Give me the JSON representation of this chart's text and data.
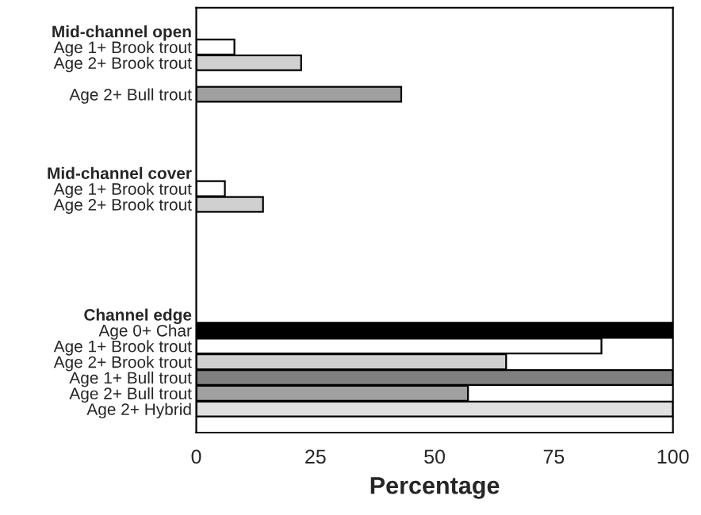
{
  "chart_data": {
    "type": "bar",
    "orientation": "horizontal",
    "xlabel": "Percentage",
    "categories": [
      null,
      "Mid-channel open",
      "Age 1+ Brook trout",
      "Age 2+ Brook trout",
      null,
      "Age 2+ Bull trout",
      null,
      null,
      null,
      null,
      "Mid-channel cover",
      "Age 1+ Brook trout",
      "Age 2+ Brook trout",
      null,
      null,
      null,
      null,
      null,
      null,
      "Channel edge",
      "Age 0+ Char",
      "Age 1+ Brook trout",
      "Age 2+ Brook trout",
      "Age 1+ Bull trout",
      "Age 2+ Bull trout",
      "Age 2+ Hybrid",
      null
    ],
    "series": [
      {
        "values": [
          null,
          null,
          8,
          22,
          null,
          43,
          null,
          null,
          null,
          null,
          null,
          6,
          14,
          null,
          null,
          null,
          null,
          null,
          null,
          null,
          100,
          85,
          65,
          100,
          57,
          100,
          null
        ],
        "colors": [
          "#ffffff",
          "#ffffff",
          "#ffffff",
          "#d0d0d0",
          "#ffffff",
          "#a0a0a0",
          "#ffffff",
          "#ffffff",
          "#ffffff",
          "#ffffff",
          "#ffffff",
          "#ffffff",
          "#d0d0d0",
          "#ffffff",
          "#ffffff",
          "#ffffff",
          "#ffffff",
          "#ffffff",
          "#ffffff",
          "#ffffff",
          "#000000",
          "#ffffff",
          "#d0d0d0",
          "#808080",
          "#a0a0a0",
          "#e0e0e0",
          "#ffffff"
        ]
      }
    ],
    "xlim": [
      0,
      100
    ],
    "xticks": [
      0,
      25,
      50,
      75,
      100
    ],
    "grid": false,
    "legend": false
  }
}
